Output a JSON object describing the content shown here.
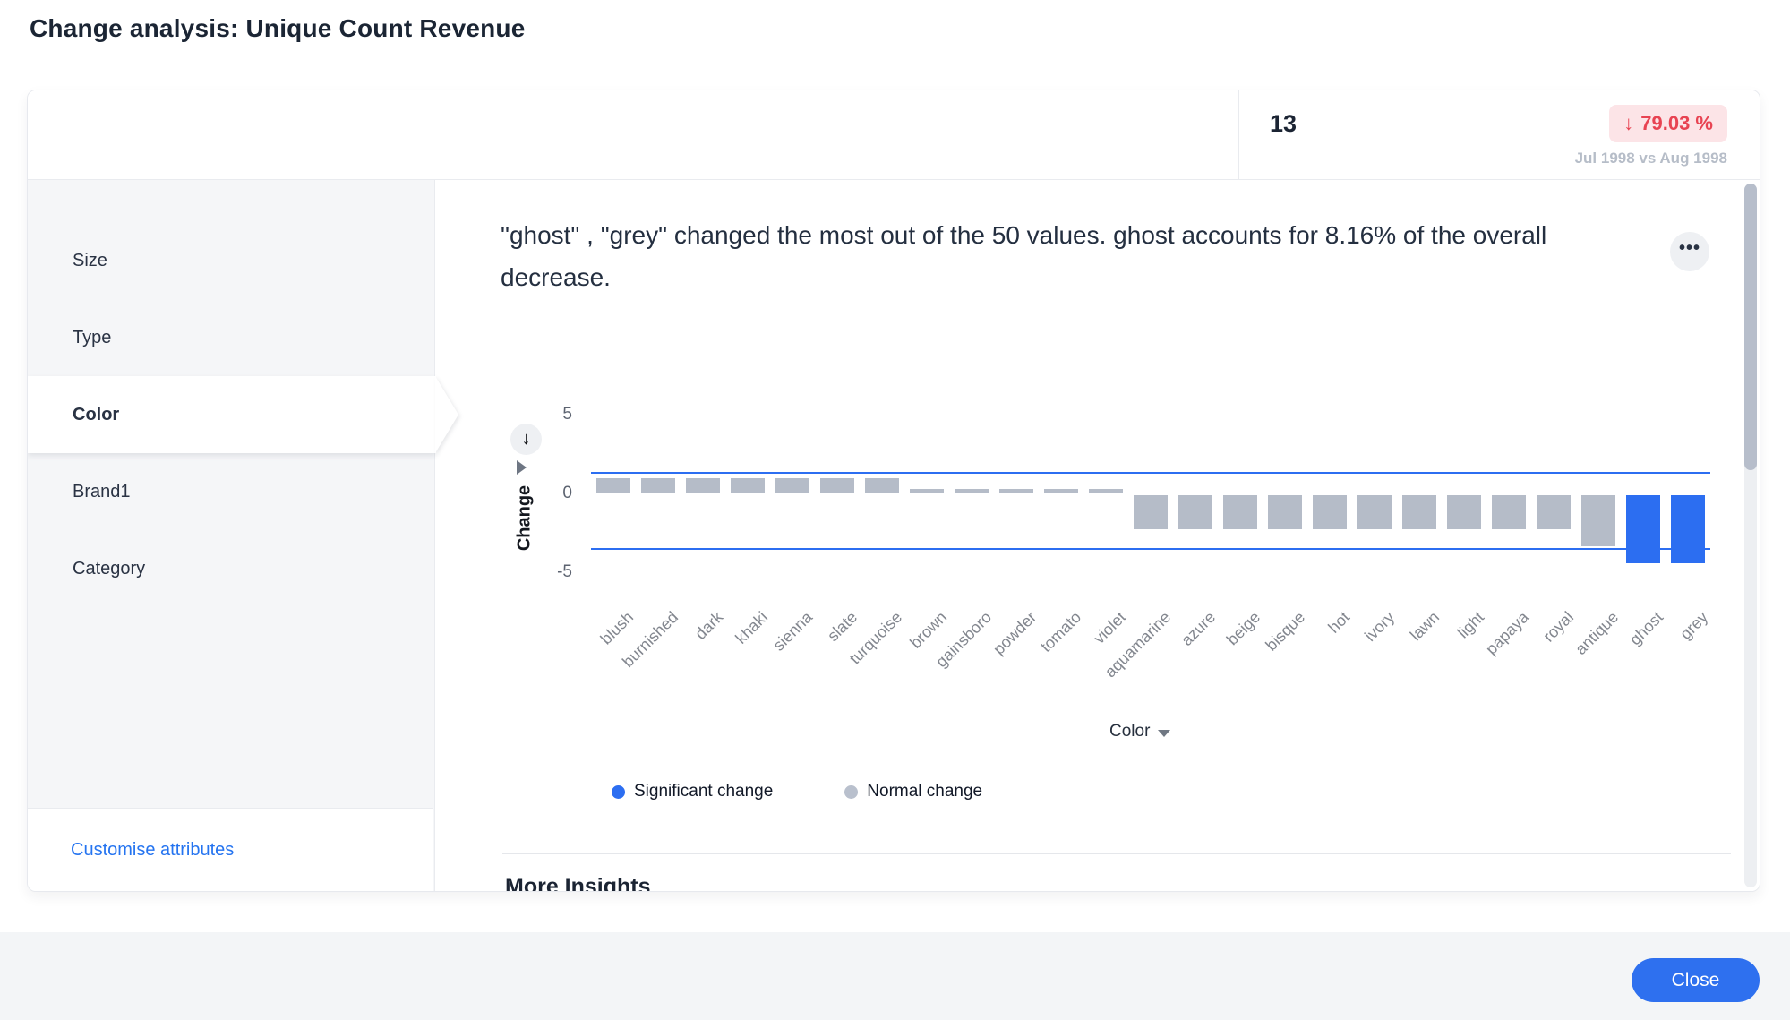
{
  "page_title": "Change analysis: Unique Count Revenue",
  "summary": {
    "value": "13",
    "delta_arrow": "↓",
    "delta": "79.03 %",
    "period": "Jul 1998 vs Aug 1998",
    "delta_color": "#e84352",
    "delta_bg": "#fce4e7"
  },
  "sidebar": {
    "items": [
      {
        "label": "Size",
        "selected": false
      },
      {
        "label": "Type",
        "selected": false
      },
      {
        "label": "Color",
        "selected": true
      },
      {
        "label": "Brand1",
        "selected": false
      },
      {
        "label": "Category",
        "selected": false
      }
    ],
    "customise_link": "Customise attributes"
  },
  "insight": {
    "text": "\"ghost\" , \"grey\" changed the most out of the 50 values. ghost accounts for 8.16% of the overall decrease.",
    "menu_glyph": "•••",
    "menu_icon": "ellipsis-icon"
  },
  "chart_data": {
    "type": "bar",
    "title": "",
    "xlabel": "Color",
    "ylabel": "Change",
    "ylim": [
      -5,
      5
    ],
    "yticks": [
      5,
      0,
      -5
    ],
    "grid": false,
    "threshold_lines": [
      1.35,
      -3.45
    ],
    "categories": [
      "blush",
      "burnished",
      "dark",
      "khaki",
      "sienna",
      "slate",
      "turquoise",
      "brown",
      "gainsboro",
      "powder",
      "tomato",
      "violet",
      "aquamarine",
      "azure",
      "beige",
      "bisque",
      "hot",
      "ivory",
      "lawn",
      "light",
      "papaya",
      "royal",
      "antique",
      "ghost",
      "grey"
    ],
    "values": [
      0.95,
      0.95,
      0.95,
      0.95,
      0.95,
      0.95,
      0.95,
      0.3,
      0.3,
      0.3,
      0.3,
      0.3,
      -2.15,
      -2.15,
      -2.15,
      -2.15,
      -2.15,
      -2.15,
      -2.15,
      -2.15,
      -2.15,
      -2.15,
      -3.25,
      -4.3,
      -4.3
    ],
    "significant": [
      "ghost",
      "grey"
    ],
    "colors": {
      "significant": "#2c6ef1",
      "normal": "#b5bcc8",
      "threshold_line": "#2c6ef1"
    },
    "legend_position": "bottom-left",
    "legend": [
      {
        "label": "Significant change",
        "color": "#2c6ef1"
      },
      {
        "label": "Normal change",
        "color": "#b9c0cd"
      }
    ],
    "sort_icon_glyph": "↓"
  },
  "more_insights_title": "More Insights",
  "footer": {
    "close_label": "Close"
  }
}
